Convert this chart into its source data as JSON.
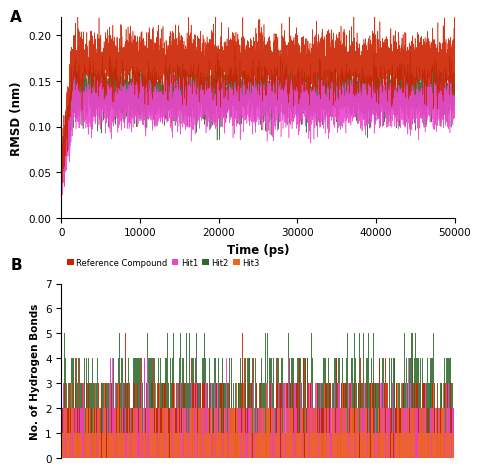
{
  "panel_A_label": "A",
  "panel_B_label": "B",
  "rmsd_xlabel": "Time (ps)",
  "rmsd_ylabel": "RMSD (nm)",
  "rmsd_xlim": [
    0,
    50000
  ],
  "rmsd_ylim": [
    0,
    0.22
  ],
  "rmsd_yticks": [
    0,
    0.05,
    0.1,
    0.15,
    0.2
  ],
  "rmsd_xticks": [
    0,
    10000,
    20000,
    30000,
    40000,
    50000
  ],
  "hbond_ylabel": "No. of Hydrogen Bonds",
  "hbond_ylim": [
    0,
    7
  ],
  "hbond_yticks": [
    0,
    1,
    2,
    3,
    4,
    5,
    6,
    7
  ],
  "n_points": 5000,
  "n_hbond_bars": 500,
  "ref_color": "#CC2200",
  "hit1_color": "#EE44CC",
  "hit2_color": "#2D6A2D",
  "hit3_color": "#EE6622",
  "legend_labels": [
    "Reference Compound",
    "Hit1",
    "Hit2",
    "Hit3"
  ],
  "seed": 42
}
